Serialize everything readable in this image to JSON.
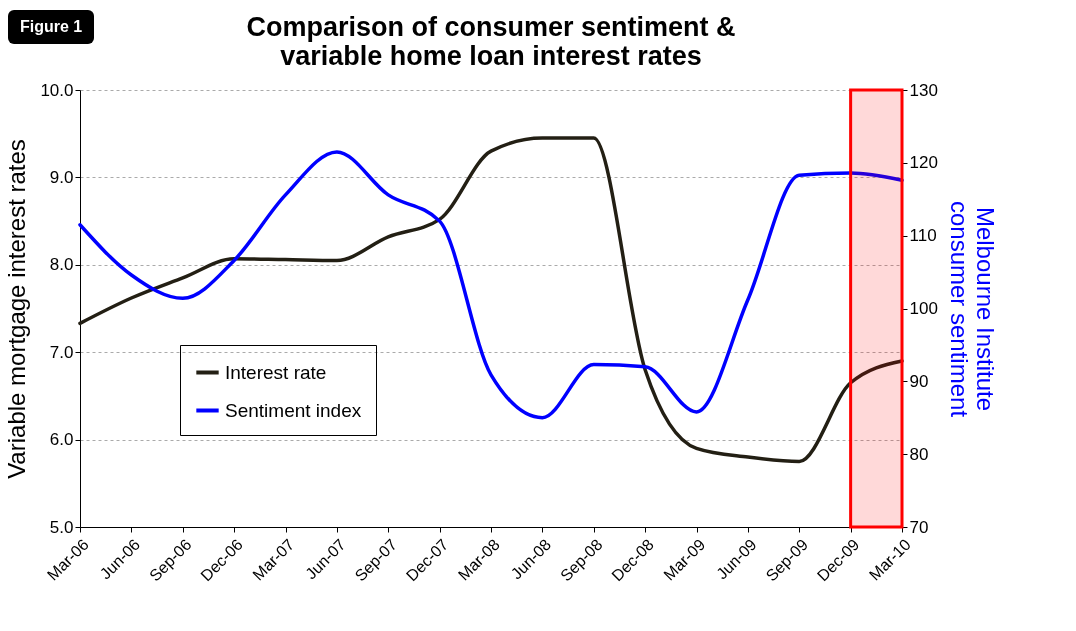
{
  "chart_data": {
    "type": "line",
    "title": "Comparison of consumer sentiment & variable home loan interest rates",
    "ylabel": "Variable mortgage interest rates",
    "y2label": "Melbourne Institute consumer sentiment",
    "annotations": [
      "Figure 1"
    ],
    "categories": [
      "Mar-06",
      "Jun-06",
      "Sep-06",
      "Dec-06",
      "Mar-07",
      "Jun-07",
      "Sep-07",
      "Dec-07",
      "Mar-08",
      "Jun-08",
      "Sep-08",
      "Dec-08",
      "Mar-09",
      "Jun-09",
      "Sep-09",
      "Dec-09",
      "Mar-10"
    ],
    "series": [
      {
        "name": "Interest rate",
        "color": "#231f14",
        "values": [
          7.33,
          7.62,
          7.85,
          8.07,
          8.06,
          8.05,
          8.32,
          8.52,
          9.3,
          9.45,
          9.45,
          6.8,
          5.9,
          5.8,
          5.75,
          6.65,
          6.9
        ]
      },
      {
        "name": "Sentiment index",
        "color": "#0000ff",
        "axis": "y2",
        "values": [
          111.5,
          104.6,
          101.4,
          106.6,
          115.6,
          121.5,
          115.6,
          112,
          90.9,
          85,
          92.3,
          92,
          85.8,
          101.2,
          118.3,
          118.6,
          117.6
        ]
      }
    ],
    "ylim": [
      5,
      10
    ],
    "yticks": [
      {
        "value": 5,
        "label": "5.0"
      },
      {
        "value": 6,
        "label": "6.0"
      },
      {
        "value": 7,
        "label": "7.0"
      },
      {
        "value": 8,
        "label": "8.0"
      },
      {
        "value": 9,
        "label": "9.0"
      },
      {
        "value": 10,
        "label": "10.0"
      }
    ],
    "y2lim": [
      70,
      130
    ],
    "y2ticks": [
      70,
      80,
      90,
      100,
      110,
      120,
      130
    ],
    "bands": [
      {
        "axis": "x",
        "from": "Dec-09",
        "to": "Mar-10",
        "color": "#ff0000"
      }
    ],
    "grid": "y",
    "legend": "bottom left",
    "marker": "none",
    "line_style": "solid"
  }
}
